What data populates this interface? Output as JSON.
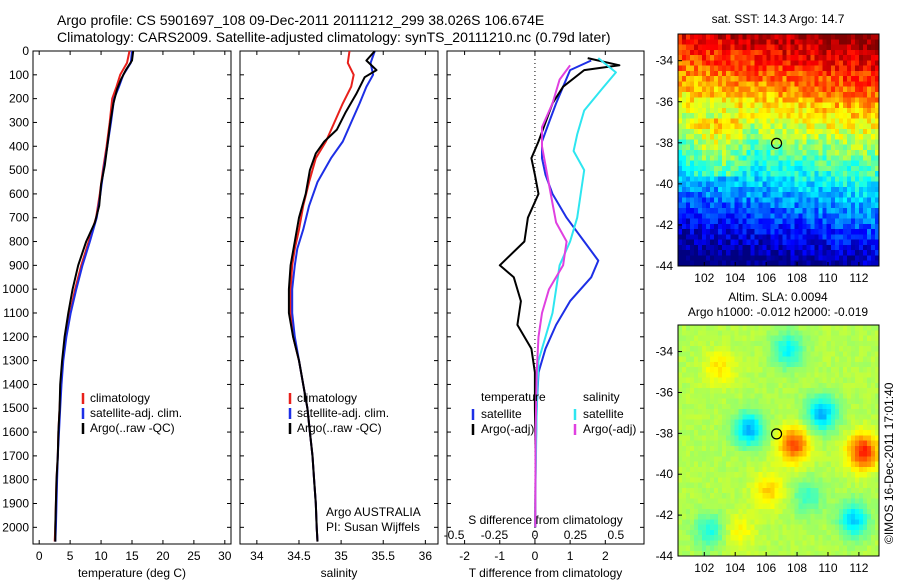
{
  "header": {
    "line1": "Argo profile: CS 5901697_108 09-Dec-2011 20111212_299 38.026S 106.674E",
    "line2": "Climatology: CARS2009. Satellite-adjusted climatology: synTS_20111210.nc (0.79d later)"
  },
  "colors": {
    "climatology": "#e8201b",
    "satellite": "#1d2fe6",
    "argo": "#000000",
    "salinity_satellite": "#2ee6f0",
    "salinity_argo": "#e040e0"
  },
  "depth_axis": {
    "ticks": [
      "0",
      "100",
      "200",
      "300",
      "400",
      "500",
      "600",
      "700",
      "800",
      "900",
      "1000",
      "1100",
      "1200",
      "1300",
      "1400",
      "1500",
      "1600",
      "1700",
      "1800",
      "1900",
      "2000"
    ],
    "ylim": [
      0,
      2070
    ]
  },
  "chart_data": [
    {
      "type": "line",
      "name": "temperature",
      "xlabel": "temperature (deg C)",
      "xlim": [
        -1,
        31
      ],
      "xticks": [
        "0",
        "5",
        "10",
        "15",
        "20",
        "25",
        "30"
      ],
      "legend": [
        "climatology",
        "satellite-adj. clim.",
        "Argo(..raw -QC)"
      ],
      "series": [
        {
          "key": "climatology",
          "points": [
            [
              14.6,
              0
            ],
            [
              14.2,
              50
            ],
            [
              13.1,
              100
            ],
            [
              12.5,
              150
            ],
            [
              11.8,
              200
            ],
            [
              11.4,
              300
            ],
            [
              10.9,
              400
            ],
            [
              10.3,
              500
            ],
            [
              9.8,
              600
            ],
            [
              9.2,
              700
            ],
            [
              8.0,
              800
            ],
            [
              6.8,
              900
            ],
            [
              5.8,
              1000
            ],
            [
              5.0,
              1100
            ],
            [
              4.3,
              1200
            ],
            [
              3.8,
              1300
            ],
            [
              3.5,
              1400
            ],
            [
              3.3,
              1500
            ],
            [
              3.1,
              1600
            ],
            [
              3.0,
              1700
            ],
            [
              2.8,
              1800
            ],
            [
              2.7,
              1900
            ],
            [
              2.6,
              2000
            ],
            [
              2.5,
              2060
            ]
          ]
        },
        {
          "key": "satellite",
          "points": [
            [
              15.0,
              0
            ],
            [
              14.8,
              50
            ],
            [
              13.6,
              100
            ],
            [
              12.9,
              150
            ],
            [
              12.1,
              200
            ],
            [
              11.6,
              300
            ],
            [
              11.0,
              400
            ],
            [
              10.4,
              500
            ],
            [
              9.9,
              600
            ],
            [
              9.3,
              700
            ],
            [
              8.2,
              800
            ],
            [
              7.0,
              900
            ],
            [
              6.0,
              1000
            ],
            [
              5.1,
              1100
            ],
            [
              4.4,
              1200
            ],
            [
              3.9,
              1300
            ],
            [
              3.6,
              1400
            ],
            [
              3.4,
              1500
            ],
            [
              3.2,
              1600
            ],
            [
              3.0,
              1700
            ],
            [
              2.9,
              1800
            ],
            [
              2.8,
              1900
            ],
            [
              2.7,
              2000
            ],
            [
              2.6,
              2060
            ]
          ]
        },
        {
          "key": "argo",
          "points": [
            [
              15.2,
              0
            ],
            [
              15.0,
              40
            ],
            [
              14.0,
              80
            ],
            [
              13.2,
              120
            ],
            [
              12.6,
              160
            ],
            [
              12.0,
              220
            ],
            [
              11.5,
              300
            ],
            [
              11.0,
              400
            ],
            [
              10.6,
              480
            ],
            [
              10.0,
              560
            ],
            [
              9.7,
              650
            ],
            [
              9.0,
              720
            ],
            [
              7.6,
              800
            ],
            [
              6.3,
              900
            ],
            [
              5.4,
              1000
            ],
            [
              4.7,
              1100
            ],
            [
              4.1,
              1200
            ],
            [
              3.7,
              1300
            ],
            [
              3.4,
              1400
            ],
            [
              3.3,
              1500
            ],
            [
              3.1,
              1600
            ],
            [
              3.0,
              1700
            ],
            [
              2.8,
              1800
            ],
            [
              2.7,
              1900
            ],
            [
              2.6,
              2000
            ],
            [
              2.6,
              2060
            ]
          ]
        }
      ]
    },
    {
      "type": "line",
      "name": "salinity",
      "xlabel": "salinity",
      "xlim": [
        33.8,
        36.15
      ],
      "xticks": [
        "34",
        "34.5",
        "35",
        "35.5",
        "36"
      ],
      "legend": [
        "climatology",
        "satellite-adj. clim.",
        "Argo(..raw -QC)"
      ],
      "annotations": [
        "Argo AUSTRALIA",
        "PI: Susan Wijffels"
      ],
      "series": [
        {
          "key": "climatology",
          "points": [
            [
              35.1,
              0
            ],
            [
              35.08,
              50
            ],
            [
              35.15,
              100
            ],
            [
              35.12,
              150
            ],
            [
              35.02,
              220
            ],
            [
              34.92,
              300
            ],
            [
              34.82,
              380
            ],
            [
              34.7,
              450
            ],
            [
              34.62,
              550
            ],
            [
              34.55,
              650
            ],
            [
              34.5,
              750
            ],
            [
              34.45,
              830
            ],
            [
              34.42,
              900
            ],
            [
              34.4,
              1000
            ],
            [
              34.4,
              1100
            ],
            [
              34.43,
              1200
            ],
            [
              34.5,
              1300
            ],
            [
              34.55,
              1400
            ],
            [
              34.6,
              1500
            ],
            [
              34.63,
              1600
            ],
            [
              34.66,
              1700
            ],
            [
              34.68,
              1800
            ],
            [
              34.7,
              1900
            ],
            [
              34.71,
              2000
            ],
            [
              34.72,
              2060
            ]
          ]
        },
        {
          "key": "satellite",
          "points": [
            [
              35.4,
              0
            ],
            [
              35.35,
              50
            ],
            [
              35.38,
              100
            ],
            [
              35.3,
              150
            ],
            [
              35.22,
              220
            ],
            [
              35.12,
              300
            ],
            [
              35.02,
              380
            ],
            [
              34.88,
              450
            ],
            [
              34.72,
              550
            ],
            [
              34.62,
              650
            ],
            [
              34.55,
              750
            ],
            [
              34.48,
              830
            ],
            [
              34.45,
              900
            ],
            [
              34.42,
              1000
            ],
            [
              34.42,
              1100
            ],
            [
              34.45,
              1200
            ],
            [
              34.5,
              1300
            ],
            [
              34.55,
              1400
            ],
            [
              34.6,
              1500
            ],
            [
              34.63,
              1600
            ],
            [
              34.66,
              1700
            ],
            [
              34.68,
              1800
            ],
            [
              34.7,
              1900
            ],
            [
              34.71,
              2000
            ],
            [
              34.72,
              2060
            ]
          ]
        },
        {
          "key": "argo",
          "points": [
            [
              35.4,
              0
            ],
            [
              35.3,
              40
            ],
            [
              35.42,
              80
            ],
            [
              35.28,
              110
            ],
            [
              35.18,
              180
            ],
            [
              35.05,
              260
            ],
            [
              34.95,
              330
            ],
            [
              34.8,
              380
            ],
            [
              34.7,
              430
            ],
            [
              34.63,
              500
            ],
            [
              34.58,
              600
            ],
            [
              34.5,
              700
            ],
            [
              34.45,
              800
            ],
            [
              34.4,
              900
            ],
            [
              34.38,
              1000
            ],
            [
              34.38,
              1100
            ],
            [
              34.43,
              1200
            ],
            [
              34.5,
              1300
            ],
            [
              34.55,
              1400
            ],
            [
              34.6,
              1500
            ],
            [
              34.63,
              1600
            ],
            [
              34.66,
              1700
            ],
            [
              34.68,
              1800
            ],
            [
              34.7,
              1900
            ],
            [
              34.71,
              2000
            ],
            [
              34.72,
              2060
            ]
          ]
        }
      ]
    },
    {
      "type": "line",
      "name": "difference",
      "xlabel": "T difference from climatology",
      "top_axis_label": "S difference from climatology",
      "xlim": [
        -2.5,
        3.1
      ],
      "xticks": [
        "-2",
        "-1",
        "0",
        "1",
        "2"
      ],
      "top_ticks": [
        "-0.5",
        "-0.25",
        "0",
        "0.25",
        "0.5"
      ],
      "legend_temperature_title": "temperature",
      "legend_salinity_title": "salinity",
      "legend_temperature": [
        "satellite",
        "Argo(-adj)"
      ],
      "legend_salinity": [
        "satellite",
        "Argo(-adj)"
      ],
      "series": [
        {
          "key": "satellite",
          "points": [
            [
              1.6,
              40
            ],
            [
              1.0,
              80
            ],
            [
              0.8,
              150
            ],
            [
              0.6,
              220
            ],
            [
              0.4,
              300
            ],
            [
              0.2,
              380
            ],
            [
              0.2,
              450
            ],
            [
              0.3,
              520
            ],
            [
              0.5,
              600
            ],
            [
              0.9,
              700
            ],
            [
              1.4,
              800
            ],
            [
              1.8,
              880
            ],
            [
              1.6,
              950
            ],
            [
              1.0,
              1050
            ],
            [
              0.6,
              1150
            ],
            [
              0.3,
              1250
            ],
            [
              0.1,
              1350
            ],
            [
              0.05,
              1500
            ],
            [
              0.02,
              1700
            ],
            [
              0.01,
              2000
            ]
          ]
        },
        {
          "key": "argo",
          "points": [
            [
              1.5,
              30
            ],
            [
              2.4,
              60
            ],
            [
              1.4,
              80
            ],
            [
              0.8,
              150
            ],
            [
              0.5,
              220
            ],
            [
              0.3,
              300
            ],
            [
              0.1,
              380
            ],
            [
              -0.1,
              450
            ],
            [
              0.0,
              520
            ],
            [
              0.1,
              600
            ],
            [
              -0.2,
              700
            ],
            [
              -0.3,
              800
            ],
            [
              -1.0,
              900
            ],
            [
              -0.6,
              950
            ],
            [
              -0.4,
              1050
            ],
            [
              -0.5,
              1150
            ],
            [
              -0.1,
              1250
            ],
            [
              0.0,
              1350
            ],
            [
              0.0,
              1500
            ],
            [
              0.02,
              1700
            ],
            [
              0.01,
              2000
            ]
          ]
        },
        {
          "key": "salinity_satellite",
          "points": [
            [
              1.8,
              30
            ],
            [
              2.3,
              90
            ],
            [
              1.9,
              160
            ],
            [
              1.4,
              250
            ],
            [
              1.2,
              350
            ],
            [
              1.1,
              420
            ],
            [
              1.4,
              500
            ],
            [
              1.3,
              600
            ],
            [
              1.2,
              700
            ],
            [
              1.0,
              800
            ],
            [
              0.7,
              900
            ],
            [
              0.6,
              1000
            ],
            [
              0.5,
              1100
            ],
            [
              0.3,
              1200
            ],
            [
              0.1,
              1300
            ],
            [
              0.05,
              1500
            ],
            [
              0.02,
              1800
            ],
            [
              0.01,
              2000
            ]
          ]
        },
        {
          "key": "salinity_argo",
          "points": [
            [
              1.0,
              60
            ],
            [
              0.7,
              120
            ],
            [
              0.5,
              220
            ],
            [
              0.2,
              320
            ],
            [
              0.2,
              400
            ],
            [
              0.3,
              480
            ],
            [
              0.4,
              560
            ],
            [
              0.5,
              640
            ],
            [
              0.6,
              720
            ],
            [
              0.9,
              800
            ],
            [
              0.8,
              900
            ],
            [
              0.4,
              1000
            ],
            [
              0.2,
              1100
            ],
            [
              0.1,
              1200
            ],
            [
              0.05,
              1350
            ],
            [
              0.02,
              1600
            ],
            [
              0.01,
              2000
            ]
          ]
        }
      ]
    },
    {
      "type": "heatmap",
      "name": "sst-map",
      "title": "sat. SST: 14.3 Argo: 14.7",
      "xlim": [
        100.3,
        113.3
      ],
      "ylim": [
        -44,
        -32.7
      ],
      "xticks": [
        "102",
        "104",
        "106",
        "108",
        "110",
        "112"
      ],
      "yticks": [
        "-34",
        "-36",
        "-38",
        "-40",
        "-42",
        "-44"
      ],
      "marker": {
        "lon": 106.674,
        "lat": -38.026
      }
    },
    {
      "type": "heatmap",
      "name": "sla-map",
      "title_line1": "Altim. SLA: 0.0094",
      "title_line2": "Argo h1000: -0.012 h2000: -0.019",
      "xlim": [
        100.3,
        113.3
      ],
      "ylim": [
        -44,
        -32.7
      ],
      "xticks": [
        "102",
        "104",
        "106",
        "108",
        "110",
        "112"
      ],
      "yticks": [
        "-34",
        "-36",
        "-38",
        "-40",
        "-42",
        "-44"
      ],
      "marker": {
        "lon": 106.674,
        "lat": -38.026
      }
    }
  ],
  "watermark": "©IMOS 16-Dec-2011 17:01:40"
}
